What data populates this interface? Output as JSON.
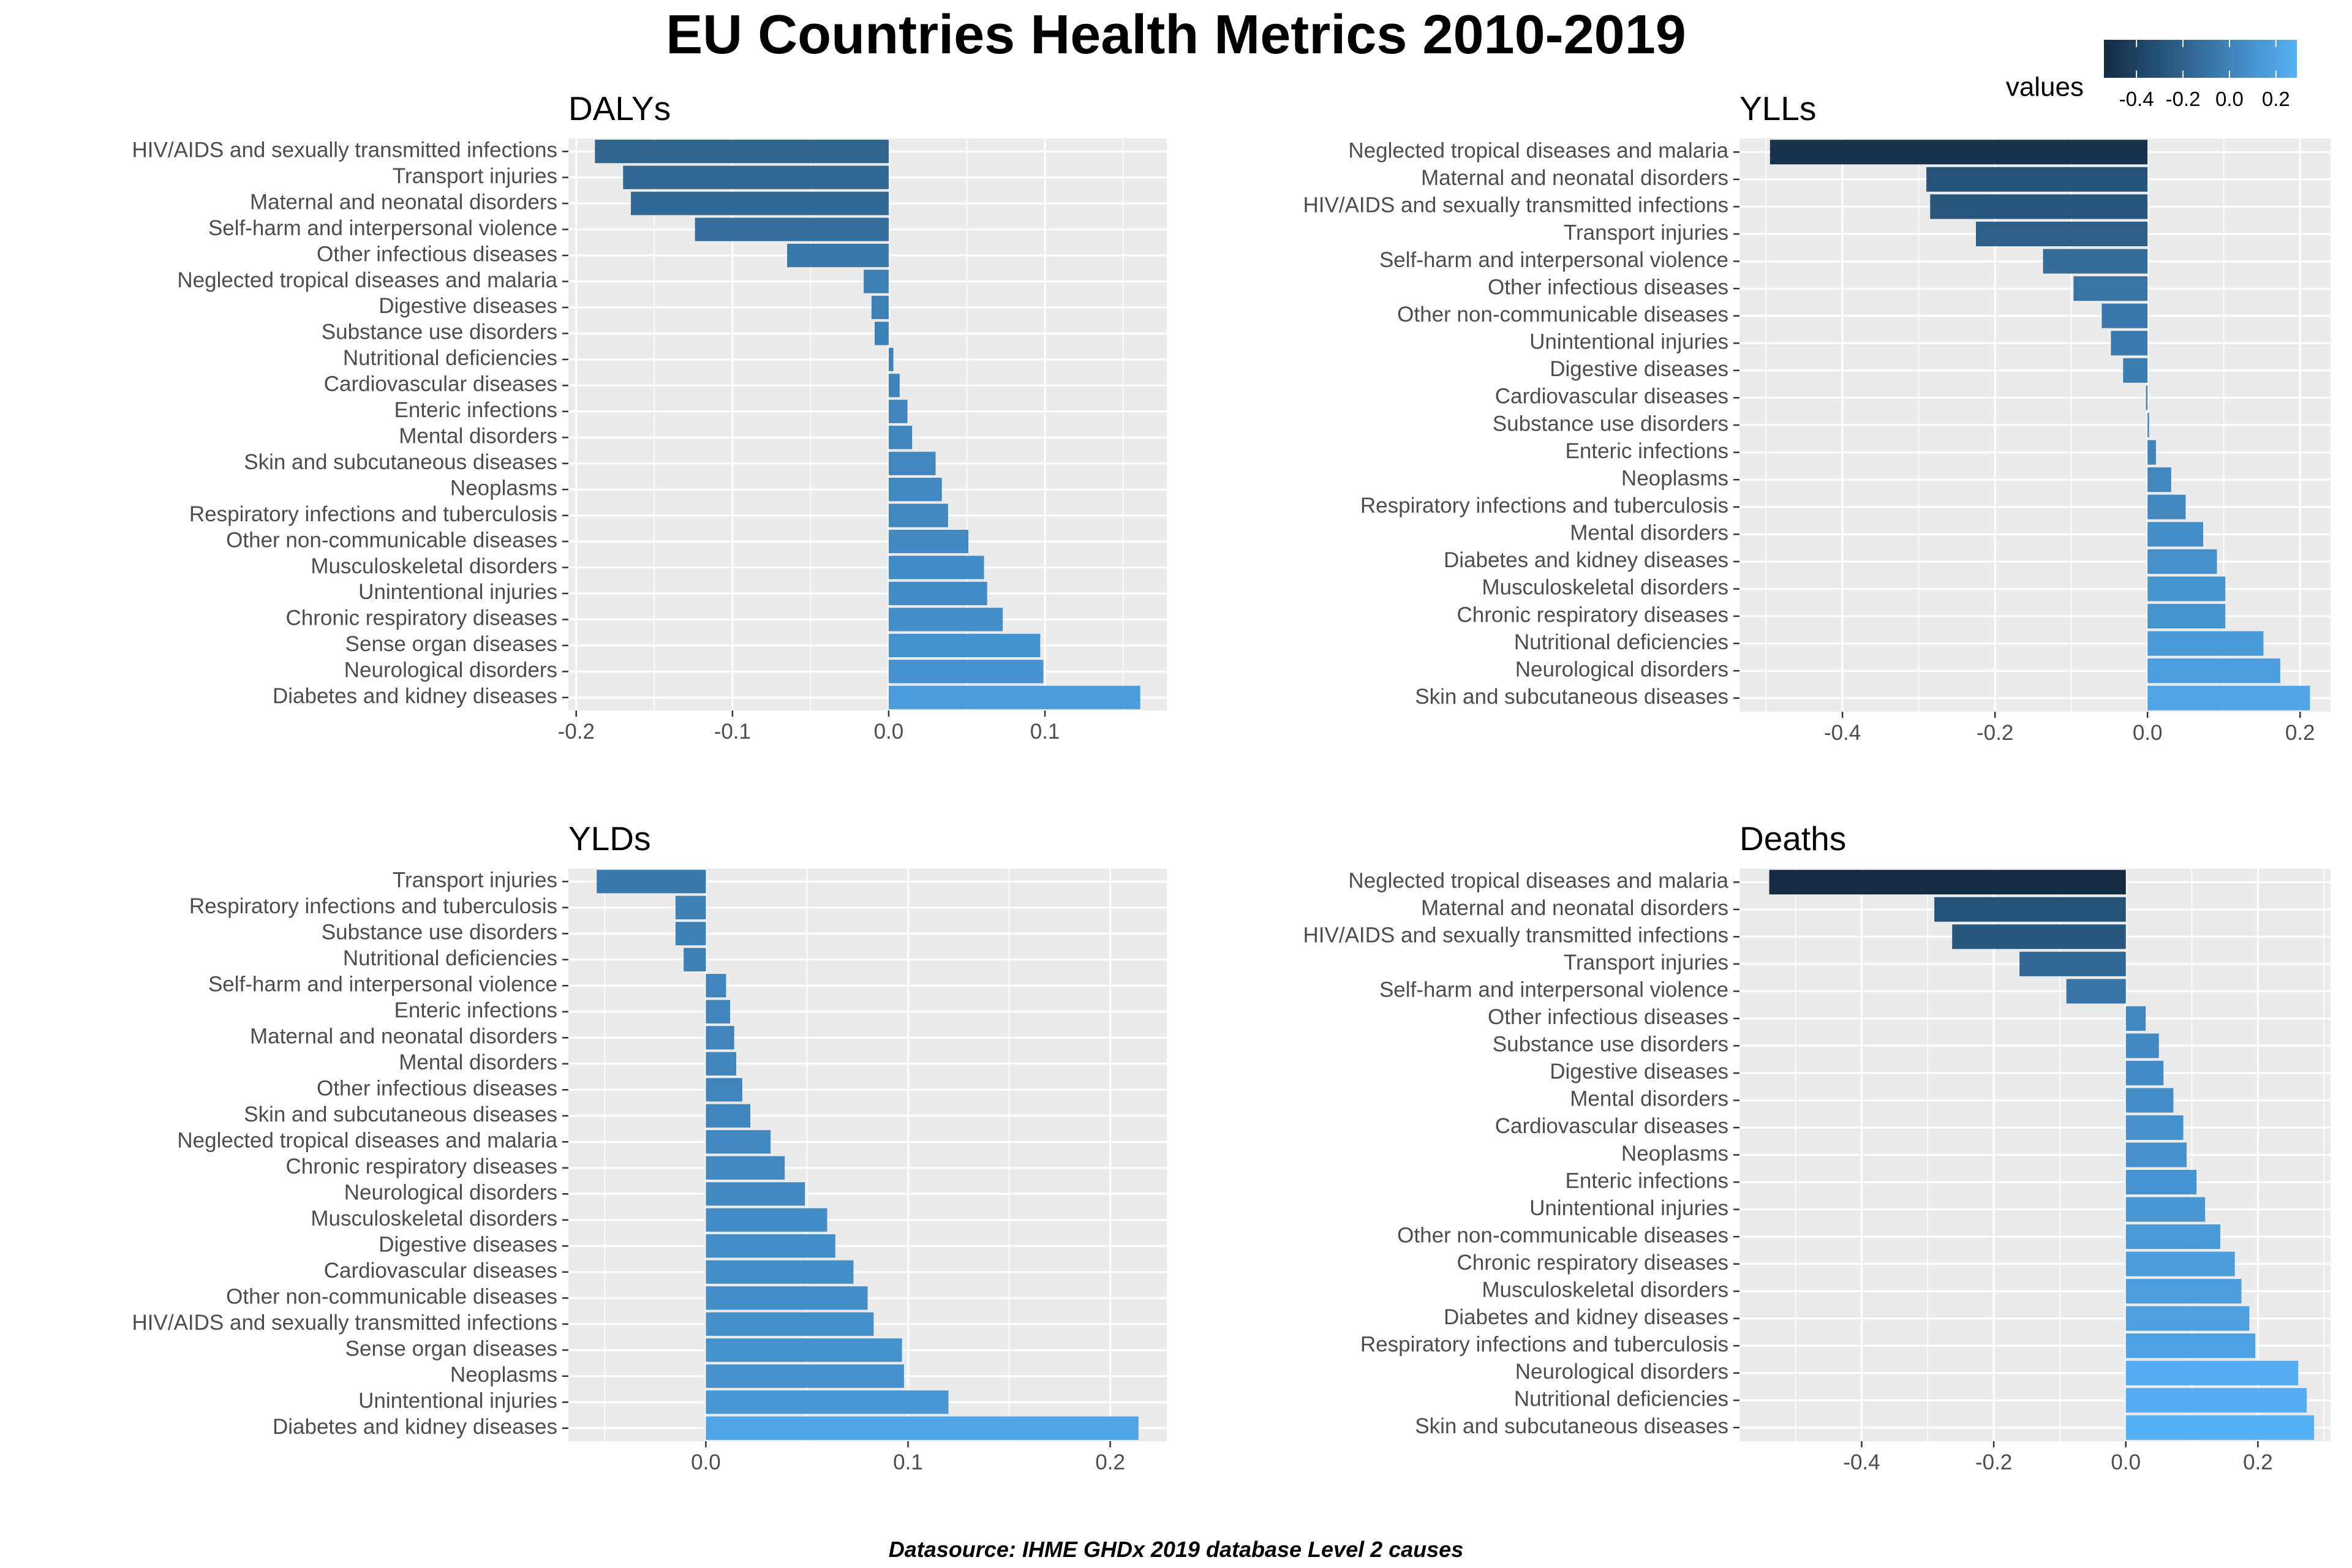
{
  "title": "EU Countries Health Metrics 2010-2019",
  "source": "Datasource: IHME GHDx 2019 database Level 2 causes",
  "legend": {
    "title": "values",
    "ticks": [
      -0.4,
      -0.2,
      0.0,
      0.2
    ],
    "tick_labels": [
      "-0.4",
      "-0.2",
      "0.0",
      "0.2"
    ],
    "range": [
      -0.54,
      0.29
    ],
    "colors": {
      "low": "#132B43",
      "high": "#56B1F7"
    }
  },
  "chart_data": [
    {
      "type": "bar",
      "orientation": "horizontal",
      "title": "DALYs",
      "xlabel": "",
      "ylabel": "",
      "xlim": [
        -0.205,
        0.178
      ],
      "xticks": [
        -0.2,
        -0.1,
        0.0,
        0.1
      ],
      "xtick_labels": [
        "-0.2",
        "-0.1",
        "0.0",
        "0.1"
      ],
      "categories": [
        "HIV/AIDS and sexually transmitted infections",
        "Transport injuries",
        "Maternal and neonatal disorders",
        "Self-harm and interpersonal violence",
        "Other infectious diseases",
        "Neglected tropical diseases and malaria",
        "Digestive diseases",
        "Substance use disorders",
        "Nutritional deficiencies",
        "Cardiovascular diseases",
        "Enteric infections",
        "Mental disorders",
        "Skin and subcutaneous diseases",
        "Neoplasms",
        "Respiratory infections and tuberculosis",
        "Other non-communicable diseases",
        "Musculoskeletal disorders",
        "Unintentional injuries",
        "Chronic respiratory diseases",
        "Sense organ diseases",
        "Neurological disorders",
        "Diabetes and kidney diseases"
      ],
      "values": [
        -0.188,
        -0.17,
        -0.165,
        -0.124,
        -0.065,
        -0.016,
        -0.011,
        -0.009,
        0.003,
        0.007,
        0.012,
        0.015,
        0.03,
        0.034,
        0.038,
        0.051,
        0.061,
        0.063,
        0.073,
        0.097,
        0.099,
        0.161
      ]
    },
    {
      "type": "bar",
      "orientation": "horizontal",
      "title": "YLLs",
      "xlabel": "",
      "ylabel": "",
      "xlim": [
        -0.535,
        0.24
      ],
      "xticks": [
        -0.4,
        -0.2,
        0.0,
        0.2
      ],
      "xtick_labels": [
        "-0.4",
        "-0.2",
        "0.0",
        "0.2"
      ],
      "categories": [
        "Neglected tropical diseases and malaria",
        "Maternal and neonatal disorders",
        "HIV/AIDS and sexually transmitted infections",
        "Transport injuries",
        "Self-harm and interpersonal violence",
        "Other infectious diseases",
        "Other non-communicable diseases",
        "Unintentional injuries",
        "Digestive diseases",
        "Cardiovascular diseases",
        "Substance use disorders",
        "Enteric infections",
        "Neoplasms",
        "Respiratory infections and tuberculosis",
        "Mental disorders",
        "Diabetes and kidney diseases",
        "Musculoskeletal disorders",
        "Chronic respiratory diseases",
        "Nutritional deficiencies",
        "Neurological disorders",
        "Skin and subcutaneous diseases"
      ],
      "values": [
        -0.495,
        -0.29,
        -0.285,
        -0.225,
        -0.137,
        -0.097,
        -0.06,
        -0.048,
        -0.032,
        -0.002,
        0.002,
        0.011,
        0.031,
        0.05,
        0.073,
        0.091,
        0.102,
        0.102,
        0.152,
        0.174,
        0.213
      ]
    },
    {
      "type": "bar",
      "orientation": "horizontal",
      "title": "YLDs",
      "xlabel": "",
      "ylabel": "",
      "xlim": [
        -0.068,
        0.228
      ],
      "xticks": [
        0.0,
        0.1,
        0.2
      ],
      "xtick_labels": [
        "0.0",
        "0.1",
        "0.2"
      ],
      "categories": [
        "Transport injuries",
        "Respiratory infections and tuberculosis",
        "Substance use disorders",
        "Nutritional deficiencies",
        "Self-harm and interpersonal violence",
        "Enteric infections",
        "Maternal and neonatal disorders",
        "Mental disorders",
        "Other infectious diseases",
        "Skin and subcutaneous diseases",
        "Neglected tropical diseases and malaria",
        "Chronic respiratory diseases",
        "Neurological disorders",
        "Musculoskeletal disorders",
        "Digestive diseases",
        "Cardiovascular diseases",
        "Other non-communicable diseases",
        "HIV/AIDS and sexually transmitted infections",
        "Sense organ diseases",
        "Neoplasms",
        "Unintentional injuries",
        "Diabetes and kidney diseases"
      ],
      "values": [
        -0.054,
        -0.015,
        -0.015,
        -0.011,
        0.01,
        0.012,
        0.014,
        0.015,
        0.018,
        0.022,
        0.032,
        0.039,
        0.049,
        0.06,
        0.064,
        0.073,
        0.08,
        0.083,
        0.097,
        0.098,
        0.12,
        0.214
      ]
    },
    {
      "type": "bar",
      "orientation": "horizontal",
      "title": "Deaths",
      "xlabel": "",
      "ylabel": "",
      "xlim": [
        -0.585,
        0.31
      ],
      "xticks": [
        -0.4,
        -0.2,
        0.0,
        0.2
      ],
      "xtick_labels": [
        "-0.4",
        "-0.2",
        "0.0",
        "0.2"
      ],
      "categories": [
        "Neglected tropical diseases and malaria",
        "Maternal and neonatal disorders",
        "HIV/AIDS and sexually transmitted infections",
        "Transport injuries",
        "Self-harm and interpersonal violence",
        "Other infectious diseases",
        "Substance use disorders",
        "Digestive diseases",
        "Mental disorders",
        "Cardiovascular diseases",
        "Neoplasms",
        "Enteric infections",
        "Unintentional injuries",
        "Other non-communicable diseases",
        "Chronic respiratory diseases",
        "Musculoskeletal disorders",
        "Diabetes and kidney diseases",
        "Respiratory infections and tuberculosis",
        "Neurological disorders",
        "Nutritional deficiencies",
        "Skin and subcutaneous diseases"
      ],
      "values": [
        -0.54,
        -0.29,
        -0.263,
        -0.161,
        -0.09,
        0.03,
        0.05,
        0.057,
        0.072,
        0.087,
        0.092,
        0.107,
        0.12,
        0.143,
        0.165,
        0.175,
        0.187,
        0.196,
        0.261,
        0.274,
        0.285
      ]
    }
  ]
}
